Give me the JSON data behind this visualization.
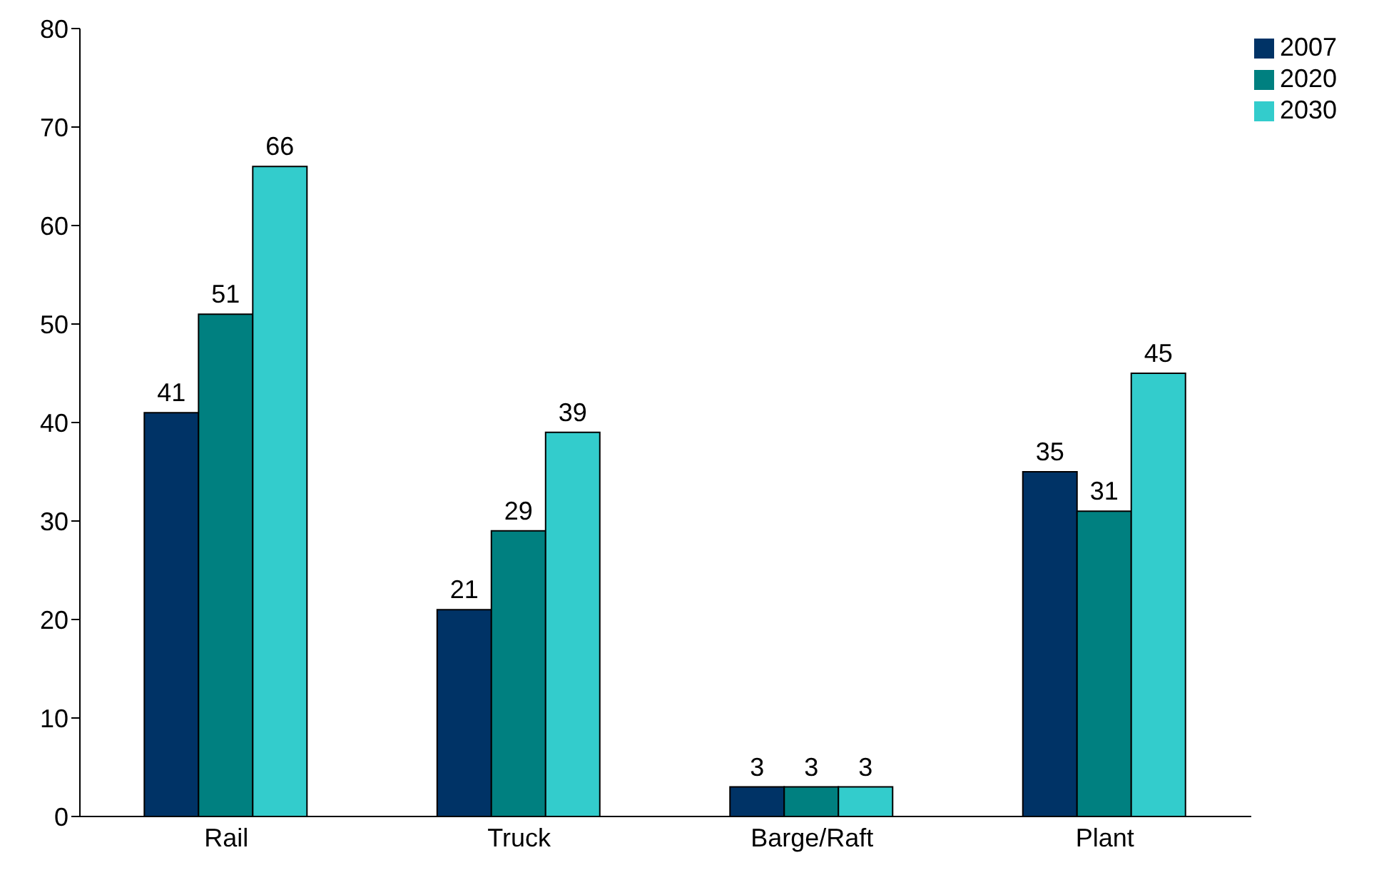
{
  "chart_data": {
    "type": "bar",
    "categories": [
      "Rail",
      "Truck",
      "Barge/Raft",
      "Plant"
    ],
    "series": [
      {
        "name": "2007",
        "color": "#003366",
        "values": [
          41,
          21,
          3,
          35
        ]
      },
      {
        "name": "2020",
        "color": "#008080",
        "values": [
          51,
          29,
          3,
          31
        ]
      },
      {
        "name": "2030",
        "color": "#33cccc",
        "values": [
          66,
          39,
          3,
          45
        ]
      }
    ],
    "ylim": [
      0,
      80
    ],
    "yticks": [
      0,
      10,
      20,
      30,
      40,
      50,
      60,
      70,
      80
    ],
    "grid": false,
    "legend": "top right",
    "data_labels": true
  }
}
